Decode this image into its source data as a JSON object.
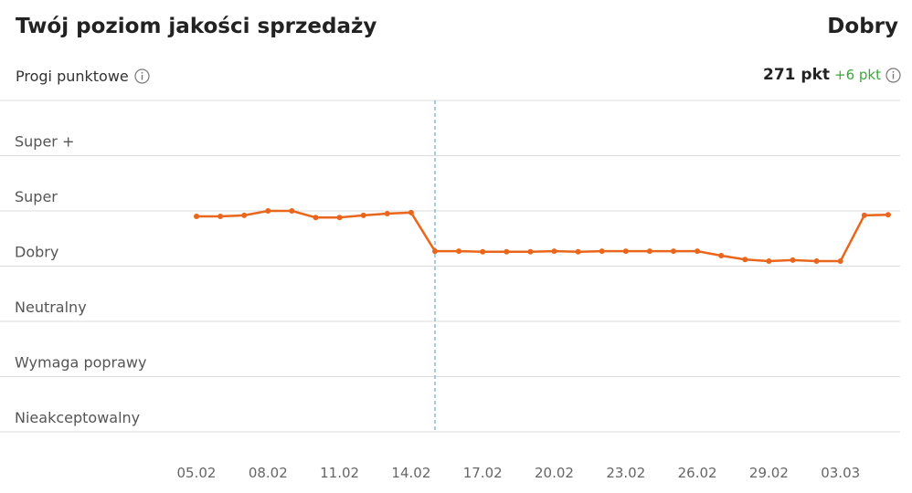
{
  "header": {
    "title": "Twój poziom jakości sprzedaży",
    "level": "Dobry",
    "thresholds_label": "Progi punktowe",
    "points": "271 pkt",
    "delta": "+6 pkt"
  },
  "chart_data": {
    "type": "line",
    "categories": [
      "05.02",
      null,
      null,
      "08.02",
      null,
      null,
      "11.02",
      null,
      null,
      "14.02",
      null,
      null,
      "17.02",
      null,
      null,
      "20.02",
      null,
      null,
      "23.02",
      null,
      null,
      "26.02",
      null,
      null,
      "29.02",
      null,
      null,
      "03.03",
      null,
      null
    ],
    "series": [
      {
        "name": null,
        "color": "#e9661c",
        "values": [
          3.9,
          3.9,
          3.92,
          4.0,
          4.0,
          3.88,
          3.88,
          3.92,
          3.95,
          3.97,
          3.27,
          3.27,
          3.26,
          3.26,
          3.26,
          3.27,
          3.26,
          3.27,
          3.27,
          3.27,
          3.27,
          3.27,
          3.19,
          3.12,
          3.09,
          3.11,
          3.09,
          3.09,
          3.92,
          3.93
        ]
      }
    ],
    "ylim": [
      0,
      6
    ],
    "yticks": [
      {
        "value": 0,
        "label": "Nieakceptowalny"
      },
      {
        "value": 1,
        "label": "Wymaga poprawy"
      },
      {
        "value": 2,
        "label": "Neutralny"
      },
      {
        "value": 3,
        "label": "Dobry"
      },
      {
        "value": 4,
        "label": "Super"
      },
      {
        "value": 5,
        "label": "Super +"
      }
    ],
    "highlight_index": 10,
    "grid": true
  }
}
